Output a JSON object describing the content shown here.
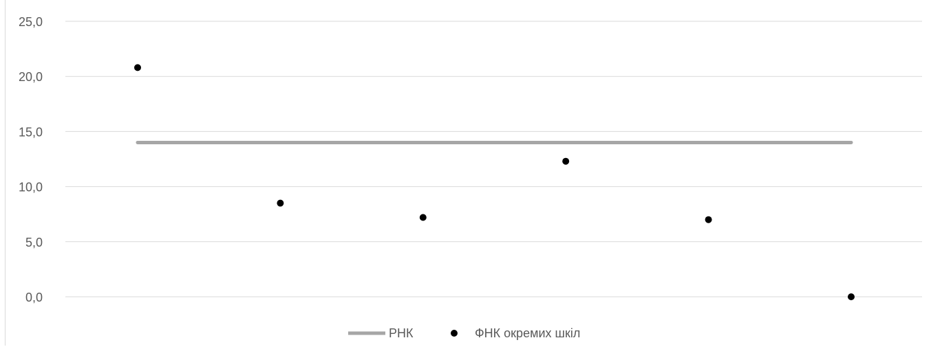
{
  "chart_data": {
    "type": "line",
    "x": [
      1,
      2,
      3,
      4,
      5,
      6
    ],
    "ylim": [
      0,
      25
    ],
    "yticks": [
      "0,0",
      "5,0",
      "10,0",
      "15,0",
      "20,0",
      "25,0"
    ],
    "grid": true,
    "legend_position": "bottom",
    "series": [
      {
        "name": "РНК",
        "kind": "line",
        "color": "#a6a6a6",
        "values": [
          14.0,
          14.0,
          14.0,
          14.0,
          14.0,
          14.0
        ]
      },
      {
        "name": "ФНК окремих шкіл",
        "kind": "scatter",
        "color": "#000000",
        "values": [
          20.8,
          8.5,
          7.2,
          12.3,
          7.0,
          0.0
        ]
      }
    ]
  }
}
